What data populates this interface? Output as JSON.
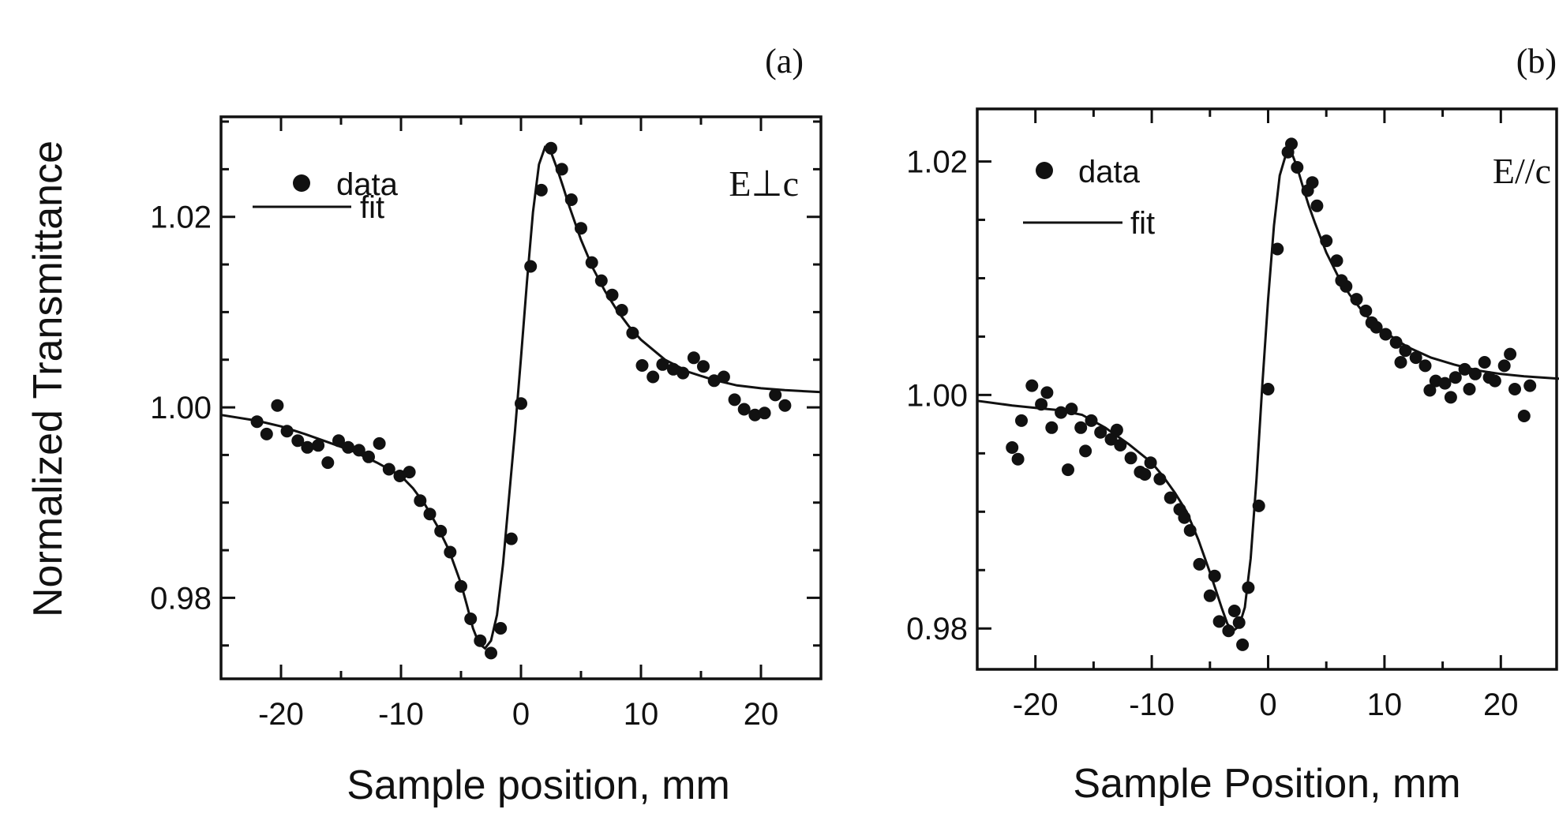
{
  "figure": {
    "ylabel": "Normalized Transmittance"
  },
  "chart_data": [
    {
      "type": "scatter",
      "panel_label": "(a)",
      "polarization": "E⊥c",
      "xlabel": "Sample position, mm",
      "ylabel": "Normalized Transmittance",
      "xlim": [
        -25,
        25
      ],
      "ylim": [
        0.9715,
        1.0305
      ],
      "x_ticks": [
        -20,
        -10,
        0,
        10,
        20
      ],
      "y_ticks": [
        0.98,
        1.0,
        1.02
      ],
      "y_tick_labels": [
        "0.98",
        "1.00",
        "1.02"
      ],
      "legend": {
        "position": "top-left",
        "entries": [
          "data",
          "fit"
        ]
      },
      "series": [
        {
          "name": "data",
          "kind": "scatter",
          "x": [
            -22,
            -21.2,
            -20.3,
            -19.5,
            -18.6,
            -17.8,
            -16.9,
            -16.1,
            -15.2,
            -14.4,
            -13.5,
            -12.7,
            -11.8,
            -11,
            -10.1,
            -9.3,
            -8.4,
            -7.6,
            -6.7,
            -5.9,
            -5,
            -4.2,
            -3.4,
            -2.5,
            -1.7,
            -0.8,
            0,
            0.8,
            1.7,
            2.5,
            3.4,
            4.2,
            5,
            5.9,
            6.7,
            7.6,
            8.4,
            9.3,
            10.1,
            11,
            11.8,
            12.7,
            13.5,
            14.4,
            15.2,
            16.1,
            16.9,
            17.8,
            18.6,
            19.5,
            20.3,
            21.2,
            22
          ],
          "y": [
            0.9985,
            0.9972,
            1.0002,
            0.9975,
            0.9965,
            0.9958,
            0.996,
            0.9942,
            0.9965,
            0.9958,
            0.9955,
            0.9948,
            0.9962,
            0.9935,
            0.9928,
            0.9932,
            0.9902,
            0.9888,
            0.987,
            0.9848,
            0.9812,
            0.9778,
            0.9755,
            0.9742,
            0.9768,
            0.9862,
            1.0004,
            1.0148,
            1.0228,
            1.0272,
            1.025,
            1.0218,
            1.0188,
            1.0152,
            1.0133,
            1.0118,
            1.0102,
            1.0078,
            1.0044,
            1.0032,
            1.0045,
            1.004,
            1.0036,
            1.0052,
            1.0043,
            1.0028,
            1.0032,
            1.0008,
            0.9998,
            0.9992,
            0.9994,
            1.0013,
            1.0002
          ]
        },
        {
          "name": "fit",
          "kind": "line",
          "x": [
            -25,
            -22,
            -20,
            -18,
            -16,
            -14,
            -12,
            -10,
            -9,
            -8,
            -7,
            -6,
            -5,
            -4.5,
            -4,
            -3.5,
            -3,
            -2.5,
            -2,
            -1.5,
            -1,
            -0.5,
            0,
            0.5,
            1,
            1.5,
            2,
            2.5,
            3,
            3.5,
            4,
            5,
            6,
            7,
            8,
            9,
            10,
            12,
            14,
            16,
            18,
            20,
            22,
            25
          ],
          "y": [
            0.9992,
            0.9986,
            0.998,
            0.9972,
            0.9963,
            0.9954,
            0.9942,
            0.9928,
            0.9915,
            0.9898,
            0.9876,
            0.985,
            0.9815,
            0.9792,
            0.9768,
            0.9752,
            0.9747,
            0.9755,
            0.9782,
            0.9835,
            0.9905,
            0.9975,
            1.0052,
            1.0132,
            1.0205,
            1.0255,
            1.0273,
            1.0268,
            1.0251,
            1.0232,
            1.0212,
            1.0176,
            1.0146,
            1.0122,
            1.0102,
            1.0085,
            1.0071,
            1.005,
            1.0037,
            1.0029,
            1.0023,
            1.002,
            1.0018,
            1.0016
          ]
        }
      ]
    },
    {
      "type": "scatter",
      "panel_label": "(b)",
      "polarization": "E//c",
      "xlabel": "Sample Position, mm",
      "xlim": [
        -25,
        25
      ],
      "ylim": [
        0.9765,
        1.0245
      ],
      "x_ticks": [
        -20,
        -10,
        0,
        10,
        20
      ],
      "y_ticks": [
        0.98,
        1.0,
        1.02
      ],
      "y_tick_labels": [
        "0.98",
        "1.00",
        "1.02"
      ],
      "legend": {
        "position": "top-left",
        "entries": [
          "data",
          "fit"
        ]
      },
      "series": [
        {
          "name": "data",
          "kind": "scatter",
          "x": [
            -22,
            -21.2,
            -20.3,
            -19.5,
            -18.6,
            -17.8,
            -16.9,
            -16.1,
            -15.2,
            -14.4,
            -13.5,
            -12.7,
            -11.8,
            -11,
            -10.1,
            -9.3,
            -8.4,
            -7.6,
            -6.7,
            -5.9,
            -5,
            -4.2,
            -3.4,
            -2.5,
            -1.7,
            -0.8,
            0,
            0.8,
            1.7,
            2.5,
            3.4,
            4.2,
            5,
            5.9,
            6.7,
            7.6,
            8.4,
            9.3,
            10.1,
            11,
            11.8,
            12.7,
            13.5,
            14.4,
            15.2,
            16.1,
            16.9,
            17.8,
            18.6,
            19.5,
            20.3,
            21.2,
            22,
            -21.5,
            -19,
            -17.2,
            -15.7,
            -13,
            -10.6,
            -7.2,
            -4.6,
            -2.9,
            -2.2,
            2,
            3.8,
            6.3,
            8.9,
            11.4,
            13.9,
            15.7,
            17.3,
            19,
            20.8,
            22.5
          ],
          "y": [
            0.9955,
            0.9978,
            1.0008,
            0.9992,
            0.9972,
            0.9985,
            0.9988,
            0.9972,
            0.9978,
            0.9968,
            0.9962,
            0.9957,
            0.9946,
            0.9934,
            0.9942,
            0.9928,
            0.9912,
            0.9902,
            0.9884,
            0.9855,
            0.9828,
            0.9806,
            0.9798,
            0.9805,
            0.9835,
            0.9905,
            1.0005,
            1.0125,
            1.0208,
            1.0195,
            1.0175,
            1.0162,
            1.0132,
            1.0115,
            1.0093,
            1.0082,
            1.0072,
            1.0058,
            1.0052,
            1.0045,
            1.0038,
            1.0032,
            1.0025,
            1.0012,
            1.001,
            1.0015,
            1.0022,
            1.0018,
            1.0028,
            1.0012,
            1.0025,
            1.0005,
            0.9982,
            0.9945,
            1.0002,
            0.9936,
            0.9952,
            0.997,
            0.9932,
            0.9895,
            0.9845,
            0.9815,
            0.9786,
            1.0215,
            1.0182,
            1.0098,
            1.0062,
            1.0028,
            1.0004,
            0.9998,
            1.0005,
            1.0015,
            1.0035,
            1.0008
          ]
        },
        {
          "name": "fit",
          "kind": "line",
          "x": [
            -25,
            -22,
            -20,
            -18,
            -16,
            -14,
            -12,
            -10,
            -9,
            -8,
            -7,
            -6,
            -5,
            -4.5,
            -4,
            -3.5,
            -3,
            -2.5,
            -2,
            -1.5,
            -1,
            -0.5,
            0,
            0.5,
            1,
            1.5,
            2,
            2.5,
            3,
            3.5,
            4,
            5,
            6,
            7,
            8,
            9,
            10,
            12,
            14,
            16,
            18,
            20,
            22,
            25
          ],
          "y": [
            0.9995,
            0.9991,
            0.9989,
            0.9987,
            0.9983,
            0.9972,
            0.9958,
            0.9942,
            0.993,
            0.9916,
            0.99,
            0.9876,
            0.9848,
            0.9833,
            0.9818,
            0.9804,
            0.9798,
            0.9802,
            0.9818,
            0.986,
            0.9928,
            1.0008,
            1.0082,
            1.0145,
            1.0188,
            1.0205,
            1.0208,
            1.0195,
            1.0178,
            1.0162,
            1.0148,
            1.0122,
            1.0102,
            1.0086,
            1.0073,
            1.0062,
            1.0054,
            1.0041,
            1.0032,
            1.0026,
            1.0021,
            1.0018,
            1.0016,
            1.0014
          ]
        }
      ]
    }
  ]
}
